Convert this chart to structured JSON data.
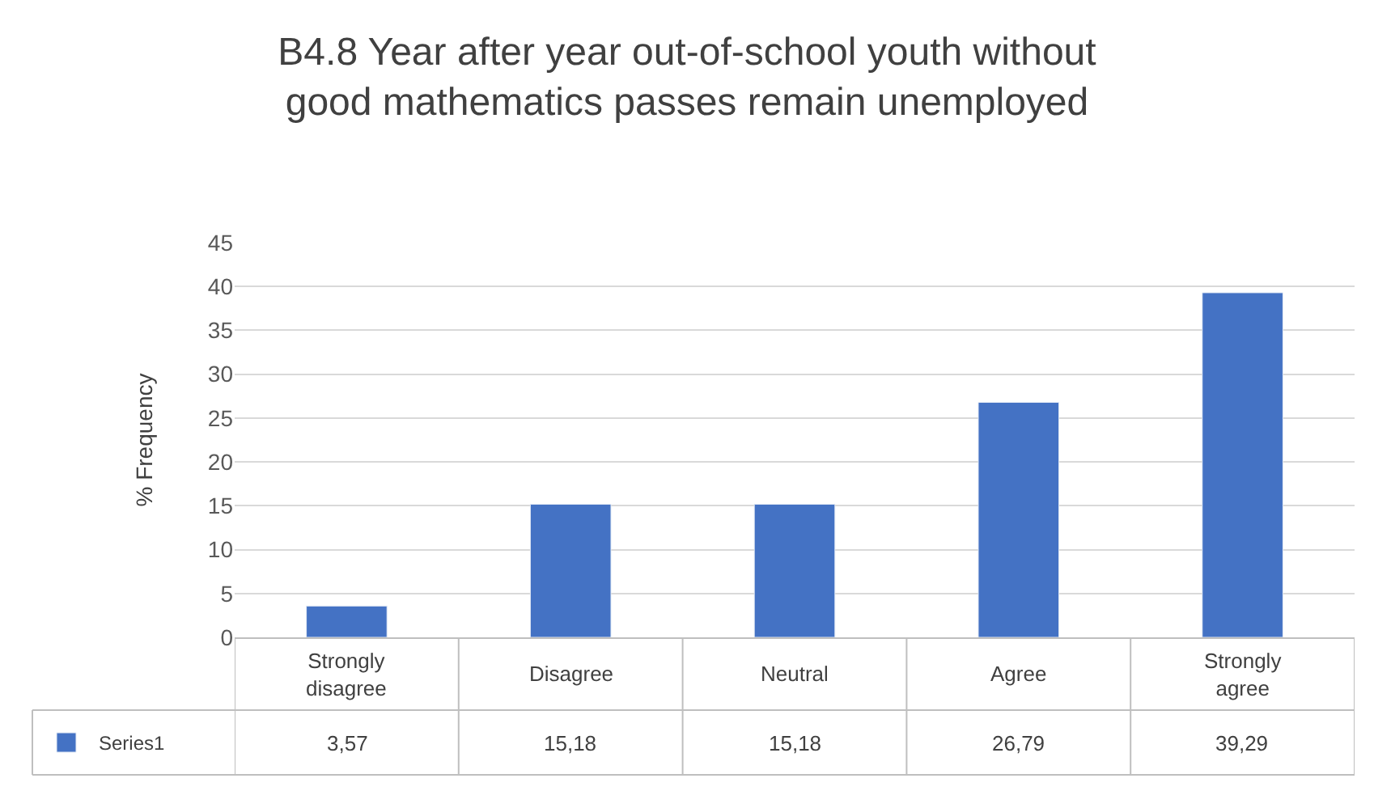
{
  "chart_data": {
    "type": "bar",
    "title": "B4.8 Year after year out-of-school youth without good mathematics passes remain unemployed",
    "ylabel": "% Frequency",
    "categories": [
      "Strongly disagree",
      "Disagree",
      "Neutral",
      "Agree",
      "Strongly agree"
    ],
    "series": [
      {
        "name": "Series1",
        "color": "#4472c4",
        "values": [
          3.57,
          15.18,
          15.18,
          26.79,
          39.29
        ],
        "value_labels": [
          "3,57",
          "15,18",
          "15,18",
          "26,79",
          "39,29"
        ]
      }
    ],
    "ylim": [
      0,
      45
    ],
    "yticks": [
      0,
      5,
      10,
      15,
      20,
      25,
      30,
      35,
      40,
      45
    ],
    "grid": "y",
    "legend": "bottom left"
  }
}
